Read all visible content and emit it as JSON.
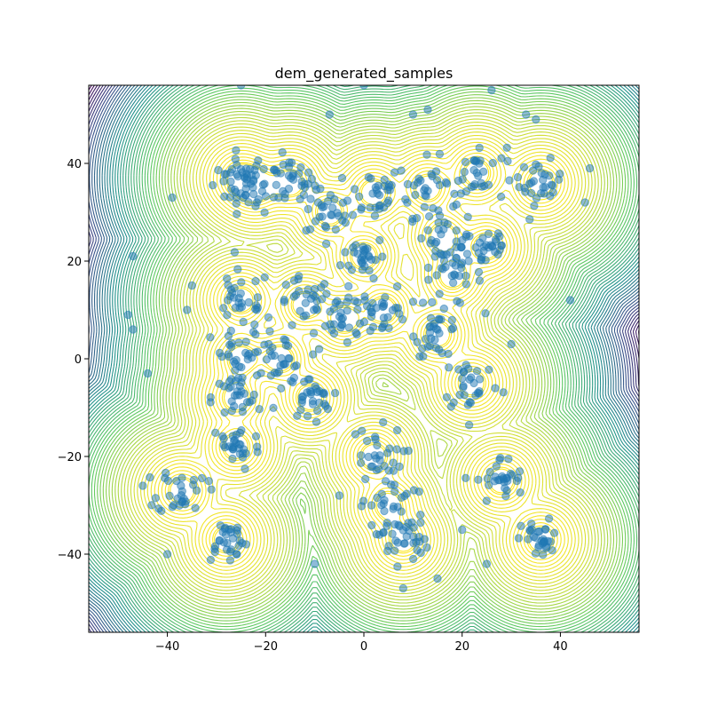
{
  "chart_data": {
    "type": "scatter",
    "title": "dem_generated_samples",
    "xlabel": "",
    "ylabel": "",
    "xlim": [
      -56,
      56
    ],
    "ylim": [
      -56,
      56
    ],
    "xticks": [
      -40,
      -20,
      0,
      20,
      40
    ],
    "yticks": [
      -40,
      -20,
      0,
      20,
      40
    ],
    "xtick_labels": [
      "−40",
      "−20",
      "0",
      "20",
      "40"
    ],
    "ytick_labels": [
      "−40",
      "−20",
      "0",
      "20",
      "40"
    ],
    "grid": false,
    "legend": "none",
    "background": "contour",
    "contour_colormap": "viridis",
    "point_color": "#1f77b4",
    "point_alpha": 0.5,
    "mode_centers": [
      [
        -25,
        37
      ],
      [
        -22,
        35
      ],
      [
        -15,
        36
      ],
      [
        -7,
        30
      ],
      [
        2,
        34
      ],
      [
        0,
        21
      ],
      [
        13,
        35
      ],
      [
        23,
        38
      ],
      [
        36,
        36
      ],
      [
        16,
        25
      ],
      [
        18,
        17
      ],
      [
        25,
        23
      ],
      [
        -25,
        12
      ],
      [
        -12,
        11
      ],
      [
        -4,
        8
      ],
      [
        4,
        10
      ],
      [
        15,
        5
      ],
      [
        -17,
        0
      ],
      [
        -11,
        -8
      ],
      [
        -26,
        -8
      ],
      [
        -26,
        -18
      ],
      [
        22,
        -5
      ],
      [
        28,
        -25
      ],
      [
        -37,
        -27
      ],
      [
        -28,
        -37
      ],
      [
        2,
        -20
      ],
      [
        5,
        -30
      ],
      [
        8,
        -37
      ],
      [
        36,
        -37
      ],
      [
        -25,
        0
      ]
    ],
    "mode_spread": [
      2.8,
      2.5,
      2.5,
      2.5,
      2.8,
      2.2,
      3.0,
      3.0,
      2.2,
      3.0,
      3.0,
      2.5,
      3.0,
      2.8,
      2.8,
      2.5,
      2.2,
      2.5,
      2.2,
      2.5,
      2.5,
      3.0,
      2.5,
      2.5,
      2.2,
      3.0,
      2.8,
      2.5,
      2.0,
      3.0
    ],
    "samples_per_mode": 30,
    "outliers": [
      [
        -47,
        21
      ],
      [
        -44,
        -3
      ],
      [
        42,
        12
      ],
      [
        45,
        32
      ],
      [
        -39,
        33
      ],
      [
        -40,
        -40
      ],
      [
        46,
        39
      ],
      [
        35,
        49
      ],
      [
        -12,
        57
      ],
      [
        -25,
        56
      ],
      [
        -48,
        9
      ],
      [
        -47,
        6
      ],
      [
        10,
        50
      ],
      [
        13,
        51
      ],
      [
        20,
        -35
      ],
      [
        25,
        -42
      ],
      [
        -10,
        -42
      ],
      [
        15,
        -45
      ],
      [
        -7,
        50
      ],
      [
        8,
        -47
      ],
      [
        -5,
        -28
      ],
      [
        -45,
        -26
      ],
      [
        -36,
        10
      ],
      [
        0,
        56
      ],
      [
        26,
        55
      ],
      [
        33,
        50
      ],
      [
        -35,
        15
      ],
      [
        30,
        3
      ]
    ]
  }
}
